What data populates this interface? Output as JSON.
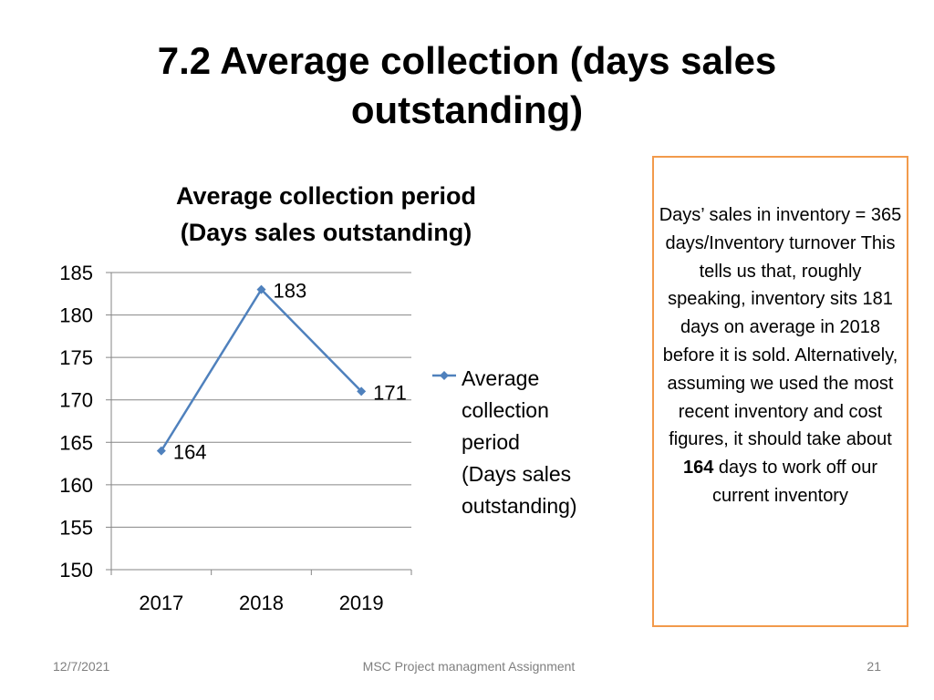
{
  "slide": {
    "title": "7.2 Average collection (days sales\noutstanding)"
  },
  "chart_data": {
    "type": "line",
    "title": "Average collection period\n(Days sales outstanding)",
    "categories": [
      "2017",
      "2018",
      "2019"
    ],
    "series": [
      {
        "name": "Average\ncollection\nperiod\n(Days sales\noutstanding)",
        "values": [
          164,
          183,
          171
        ]
      }
    ],
    "data_labels": [
      "164",
      "183",
      "171"
    ],
    "xlabel": "",
    "ylabel": "",
    "ylim": [
      150,
      185
    ],
    "yticks": [
      150,
      155,
      160,
      165,
      170,
      175,
      180,
      185
    ],
    "grid": true,
    "legend_position": "right",
    "color": "#4f81bd"
  },
  "note": {
    "lines_before": "Days’ sales in inventory = 365 days/Inventory turnover This tells us that, roughly speaking, inventory sits 181 days on average in 2018 before it is sold. Alternatively, assuming we used the most recent inventory and cost figures, it should take about ",
    "bold": "164",
    "lines_after": " days to work off our current inventory",
    "border_color": "#f29a4b"
  },
  "footer": {
    "date": "12/7/2021",
    "center": "MSC Project managment Assignment",
    "page": "21"
  }
}
